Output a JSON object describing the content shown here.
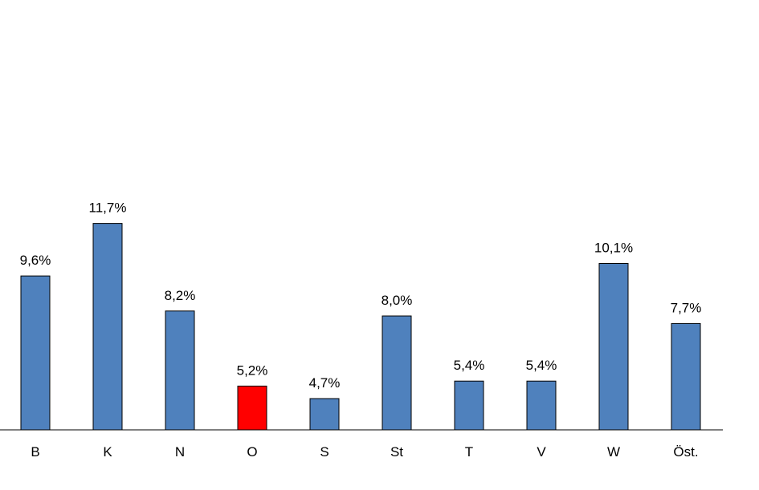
{
  "chart_data": {
    "type": "bar",
    "title": "",
    "xlabel": "",
    "ylabel": "",
    "categories": [
      "B",
      "K",
      "N",
      "O",
      "S",
      "St",
      "T",
      "V",
      "W",
      "Öst."
    ],
    "values": [
      9.6,
      11.7,
      8.2,
      5.2,
      4.7,
      8.0,
      5.4,
      5.4,
      10.1,
      7.7
    ],
    "data_labels": [
      "9,6%",
      "11,7%",
      "8,2%",
      "5,2%",
      "4,7%",
      "8,0%",
      "5,4%",
      "5,4%",
      "10,1%",
      "7,7%"
    ],
    "highlight_index": 3,
    "axis_min": 3.45,
    "grid": false,
    "legend": "none",
    "colors": {
      "bar": "#4f81bd",
      "highlight": "#ff0000",
      "bar_outline": "#000000",
      "axis": "#000000"
    }
  }
}
